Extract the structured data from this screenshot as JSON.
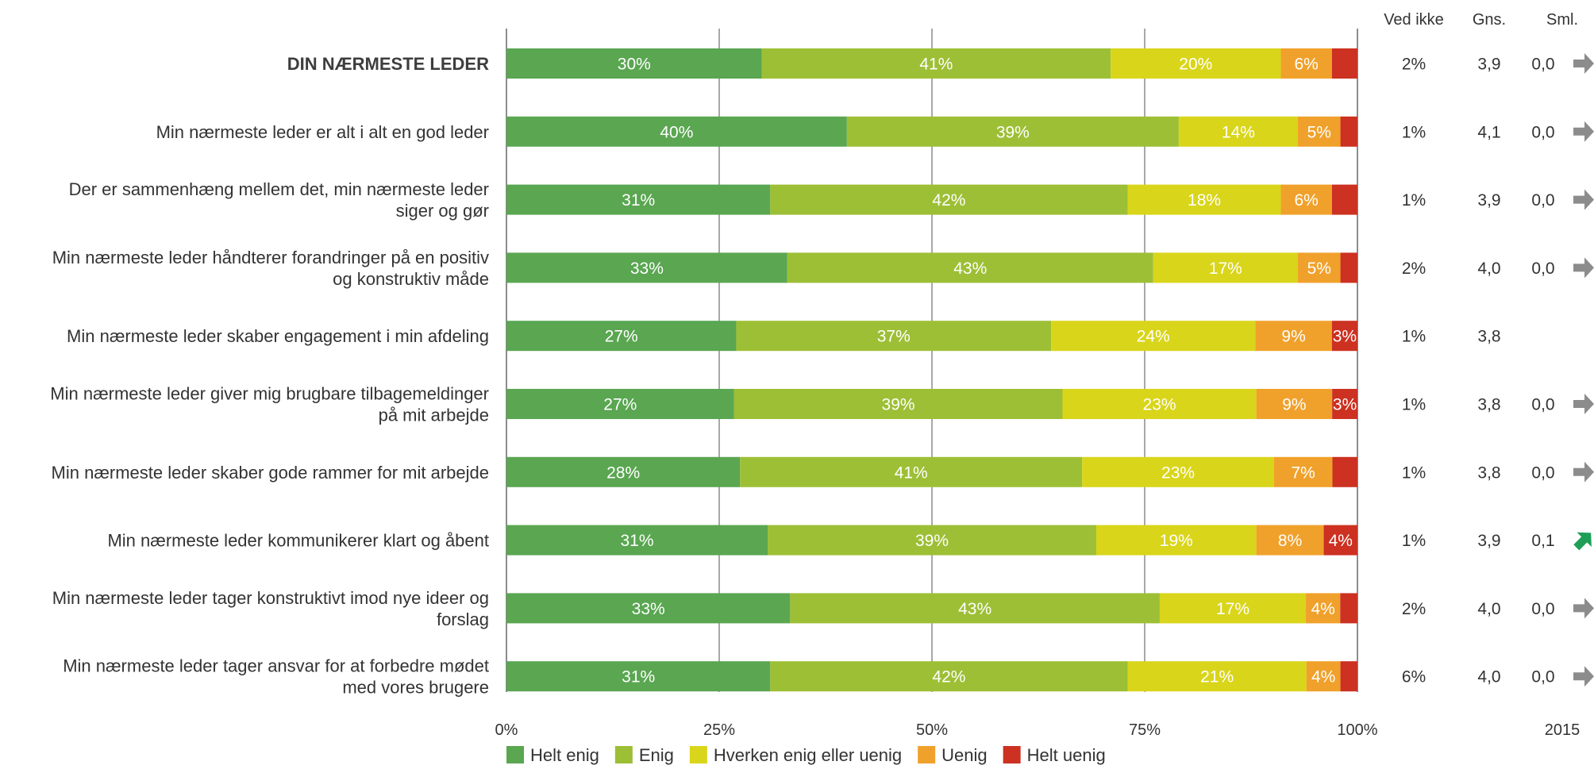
{
  "chart_data": {
    "type": "bar",
    "orientation": "horizontal",
    "stacked": true,
    "x_ticks": [
      "0%",
      "25%",
      "50%",
      "75%",
      "100%"
    ],
    "xlim": [
      0,
      100
    ],
    "grid": true,
    "legend_position": "bottom",
    "column_headers": {
      "ved_ikke": "Ved ikke",
      "gns": "Gns.",
      "sml": "Sml."
    },
    "sml_year": "2015",
    "series": [
      {
        "name": "Helt enig",
        "color": "#5aa651"
      },
      {
        "name": "Enig",
        "color": "#9dbf35"
      },
      {
        "name": "Hverken enig eller uenig",
        "color": "#d9d51a"
      },
      {
        "name": "Uenig",
        "color": "#f0a12b"
      },
      {
        "name": "Helt uenig",
        "color": "#cc3121"
      }
    ],
    "rows": [
      {
        "label_lines": [
          "DIN NÆRMESTE LEDER"
        ],
        "heading": true,
        "values": [
          30,
          41,
          20,
          6,
          3
        ],
        "labels": [
          "30%",
          "41%",
          "20%",
          "6%",
          ""
        ],
        "ved_ikke": "2%",
        "gns": "3,9",
        "sml": "0,0",
        "trend": "flat"
      },
      {
        "label_lines": [
          "Min nærmeste leder er alt i alt en god leder"
        ],
        "values": [
          40,
          39,
          14,
          5,
          2
        ],
        "labels": [
          "40%",
          "39%",
          "14%",
          "5%",
          ""
        ],
        "ved_ikke": "1%",
        "gns": "4,1",
        "sml": "0,0",
        "trend": "flat"
      },
      {
        "label_lines": [
          "Der er sammenhæng mellem det, min nærmeste leder",
          "siger og gør"
        ],
        "values": [
          31,
          42,
          18,
          6,
          3
        ],
        "labels": [
          "31%",
          "42%",
          "18%",
          "6%",
          ""
        ],
        "ved_ikke": "1%",
        "gns": "3,9",
        "sml": "0,0",
        "trend": "flat"
      },
      {
        "label_lines": [
          "Min nærmeste leder håndterer forandringer på en positiv",
          "og konstruktiv måde"
        ],
        "values": [
          33,
          43,
          17,
          5,
          2
        ],
        "labels": [
          "33%",
          "43%",
          "17%",
          "5%",
          ""
        ],
        "ved_ikke": "2%",
        "gns": "4,0",
        "sml": "0,0",
        "trend": "flat"
      },
      {
        "label_lines": [
          "Min nærmeste leder skaber engagement i min afdeling"
        ],
        "values": [
          27,
          37,
          24,
          9,
          3
        ],
        "labels": [
          "27%",
          "37%",
          "24%",
          "9%",
          "3%"
        ],
        "ved_ikke": "1%",
        "gns": "3,8",
        "sml": "",
        "trend": "none"
      },
      {
        "label_lines": [
          "Min nærmeste leder giver mig brugbare tilbagemeldinger",
          "på mit arbejde"
        ],
        "values": [
          27,
          39,
          23,
          9,
          3
        ],
        "labels": [
          "27%",
          "39%",
          "23%",
          "9%",
          "3%"
        ],
        "ved_ikke": "1%",
        "gns": "3,8",
        "sml": "0,0",
        "trend": "flat"
      },
      {
        "label_lines": [
          "Min nærmeste leder skaber gode rammer for mit arbejde"
        ],
        "values": [
          28,
          41,
          23,
          7,
          3
        ],
        "labels": [
          "28%",
          "41%",
          "23%",
          "7%",
          ""
        ],
        "ved_ikke": "1%",
        "gns": "3,8",
        "sml": "0,0",
        "trend": "flat"
      },
      {
        "label_lines": [
          "Min nærmeste leder kommunikerer klart og åbent"
        ],
        "values": [
          31,
          39,
          19,
          8,
          4
        ],
        "labels": [
          "31%",
          "39%",
          "19%",
          "8%",
          "4%"
        ],
        "ved_ikke": "1%",
        "gns": "3,9",
        "sml": "0,1",
        "trend": "up"
      },
      {
        "label_lines": [
          "Min nærmeste leder tager konstruktivt imod nye ideer og",
          "forslag"
        ],
        "values": [
          33,
          43,
          17,
          4,
          2
        ],
        "labels": [
          "33%",
          "43%",
          "17%",
          "4%",
          ""
        ],
        "ved_ikke": "2%",
        "gns": "4,0",
        "sml": "0,0",
        "trend": "flat"
      },
      {
        "label_lines": [
          "Min nærmeste leder tager ansvar for at forbedre mødet",
          "med vores brugere"
        ],
        "values": [
          31,
          42,
          21,
          4,
          2
        ],
        "labels": [
          "31%",
          "42%",
          "21%",
          "4%",
          ""
        ],
        "ved_ikke": "6%",
        "gns": "4,0",
        "sml": "0,0",
        "trend": "flat"
      }
    ],
    "trend_colors": {
      "flat": "#8c8c8c",
      "up": "#1e9e57"
    },
    "axis_color": "#8c8c8c"
  }
}
